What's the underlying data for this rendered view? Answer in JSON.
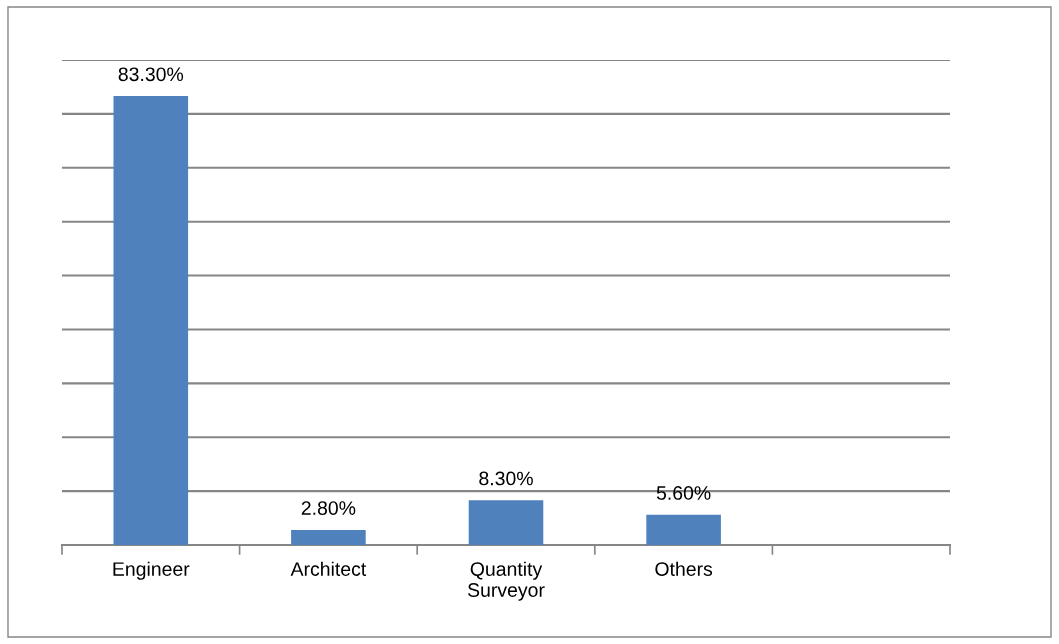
{
  "chart_data": {
    "type": "bar",
    "categories": [
      "Engineer",
      "Architect",
      "Quantity\nSurveyor",
      "Others",
      null
    ],
    "values": [
      83.3,
      2.8,
      8.3,
      5.6,
      null
    ],
    "color": "#4f81bd",
    "value_labels": [
      "83.30%",
      "2.80%",
      "8.30%",
      "5.60%",
      null
    ],
    "ylim": [
      0,
      90
    ],
    "yticks": [
      {
        "value": 0,
        "label": null
      },
      {
        "value": 10,
        "label": null
      },
      {
        "value": 20,
        "label": null
      },
      {
        "value": 30,
        "label": null
      },
      {
        "value": 40,
        "label": null
      },
      {
        "value": 50,
        "label": null
      },
      {
        "value": 60,
        "label": null
      },
      {
        "value": 70,
        "label": null
      },
      {
        "value": 80,
        "label": null
      },
      {
        "value": 90,
        "label": null
      }
    ],
    "grid": "y",
    "tick_labels": "x"
  }
}
